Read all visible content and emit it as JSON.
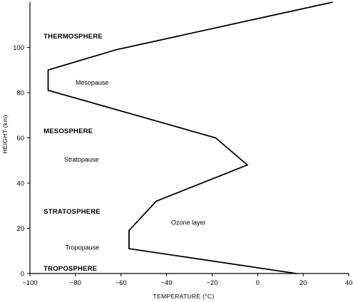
{
  "chart_data": {
    "type": "line",
    "title": "",
    "xlabel": "TEMPERATURE (°C)",
    "ylabel": "HEIGHT (km)",
    "xlim": [
      -100,
      40
    ],
    "ylim": [
      0,
      120
    ],
    "xticks": [
      -100,
      -80,
      -60,
      -40,
      -20,
      0,
      20,
      40
    ],
    "yticks": [
      0,
      20,
      40,
      60,
      80,
      100
    ],
    "grid": false,
    "series": [
      {
        "x": [
          17,
          -56.5,
          -56.5,
          -44.5,
          -4.5,
          -18.5,
          -92,
          -92,
          -62,
          33
        ],
        "y": [
          0,
          11,
          19,
          32,
          48,
          60,
          81,
          90,
          99,
          120
        ]
      }
    ],
    "layers": [
      {
        "label": "THERMOSPHERE",
        "x": -94,
        "y": 104
      },
      {
        "label": "MESOSPHERE",
        "x": -94,
        "y": 62
      },
      {
        "label": "STRATOSPHERE",
        "x": -94,
        "y": 26.5
      },
      {
        "label": "TROPOSPHERE",
        "x": -94,
        "y": 1.3
      }
    ],
    "annotations": [
      {
        "label": "Mesopause",
        "x": -80,
        "y": 83.5
      },
      {
        "label": "Stratopause",
        "x": -85,
        "y": 49.5
      },
      {
        "label": "Ozone layer",
        "x": -38,
        "y": 21.5
      },
      {
        "label": "Tropopause",
        "x": -84.5,
        "y": 10.5
      }
    ]
  }
}
